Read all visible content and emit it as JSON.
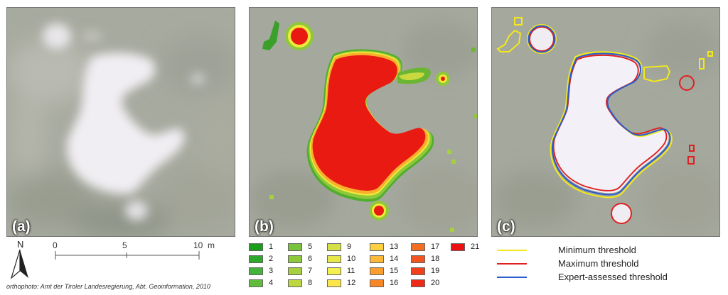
{
  "panels": {
    "a": {
      "label": "(a)"
    },
    "b": {
      "label": "(b)"
    },
    "c": {
      "label": "(c)"
    }
  },
  "north_arrow": {
    "letter": "N",
    "icon": "north-arrow-icon"
  },
  "scale_bar": {
    "ticks": [
      "0",
      "5",
      "10"
    ],
    "unit": "m"
  },
  "credit": "orthophoto: Amt der Tiroler Landesregierung, Abt. Geoinformation, 2010",
  "class_legend": [
    {
      "label": "1",
      "color": "#1a9e1a"
    },
    {
      "label": "2",
      "color": "#2ea82a"
    },
    {
      "label": "3",
      "color": "#45b23a"
    },
    {
      "label": "4",
      "color": "#62bc3c"
    },
    {
      "label": "5",
      "color": "#78c23c"
    },
    {
      "label": "6",
      "color": "#8ec83c"
    },
    {
      "label": "7",
      "color": "#a6d03e"
    },
    {
      "label": "8",
      "color": "#bcd840"
    },
    {
      "label": "9",
      "color": "#d4e046"
    },
    {
      "label": "10",
      "color": "#e6e84a"
    },
    {
      "label": "11",
      "color": "#f4f050"
    },
    {
      "label": "12",
      "color": "#fbe64a"
    },
    {
      "label": "13",
      "color": "#fcd040"
    },
    {
      "label": "14",
      "color": "#fcb838"
    },
    {
      "label": "15",
      "color": "#fa9e30"
    },
    {
      "label": "16",
      "color": "#f68628"
    },
    {
      "label": "17",
      "color": "#f46e22"
    },
    {
      "label": "18",
      "color": "#f25620"
    },
    {
      "label": "19",
      "color": "#f0401c"
    },
    {
      "label": "20",
      "color": "#ee2a18"
    },
    {
      "label": "21",
      "color": "#ec1010"
    }
  ],
  "threshold_legend": [
    {
      "label": "Minimum threshold",
      "color": "#f2e81c"
    },
    {
      "label": "Maximum threshold",
      "color": "#e02020"
    },
    {
      "label": "Expert-assessed threshold",
      "color": "#2a5ccc"
    }
  ]
}
